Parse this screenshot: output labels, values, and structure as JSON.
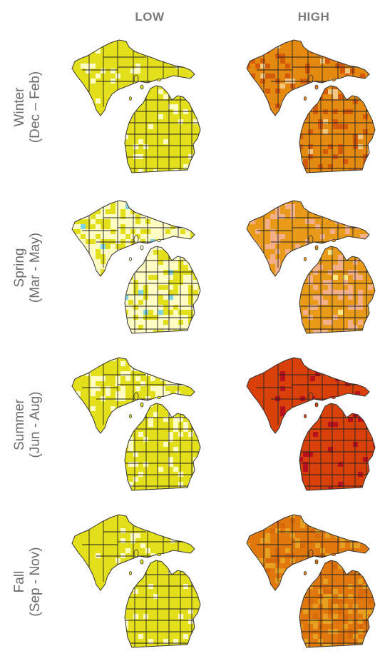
{
  "columns": [
    {
      "label": "LOW"
    },
    {
      "label": "HIGH"
    }
  ],
  "rows": [
    {
      "season": "Winter",
      "months": "(Dec – Feb)"
    },
    {
      "season": "Spring",
      "months": "(Mar - May)"
    },
    {
      "season": "Summer",
      "months": "(Jun - Aug)"
    },
    {
      "season": "Fall",
      "months": "(Sep - Nov)"
    }
  ],
  "maps": [
    {
      "row": "Winter",
      "scenario": "LOW",
      "base_color": "#e3e01b",
      "secondary_color": "#fffcc4",
      "secondary_share": 0.08,
      "accent_color": "#f4a080",
      "accent_share": 0.0
    },
    {
      "row": "Winter",
      "scenario": "HIGH",
      "base_color": "#e58a10",
      "secondary_color": "#f4c880",
      "secondary_share": 0.05,
      "accent_color": "#d45a0a",
      "accent_share": 0.18
    },
    {
      "row": "Spring",
      "scenario": "LOW",
      "base_color": "#fffcc4",
      "secondary_color": "#e3e01b",
      "secondary_share": 0.35,
      "accent_color": "#7fd6e0",
      "accent_share": 0.02
    },
    {
      "row": "Spring",
      "scenario": "HIGH",
      "base_color": "#e89a18",
      "secondary_color": "#f3b088",
      "secondary_share": 0.25,
      "accent_color": "#ffe88a",
      "accent_share": 0.01
    },
    {
      "row": "Summer",
      "scenario": "LOW",
      "base_color": "#e3e01b",
      "secondary_color": "#fffcc4",
      "secondary_share": 0.22,
      "accent_color": "#e3e01b",
      "accent_share": 0.0
    },
    {
      "row": "Summer",
      "scenario": "HIGH",
      "base_color": "#d9400a",
      "secondary_color": "#b8101c",
      "secondary_share": 0.1,
      "accent_color": "#e2500f",
      "accent_share": 0.0
    },
    {
      "row": "Fall",
      "scenario": "LOW",
      "base_color": "#e3e01b",
      "secondary_color": "#fffcc4",
      "secondary_share": 0.07,
      "accent_color": "#e3e01b",
      "accent_share": 0.0
    },
    {
      "row": "Fall",
      "scenario": "HIGH",
      "base_color": "#e0780e",
      "secondary_color": "#e8a020",
      "secondary_share": 0.25,
      "accent_color": "#d96a0c",
      "accent_share": 0.1
    }
  ]
}
